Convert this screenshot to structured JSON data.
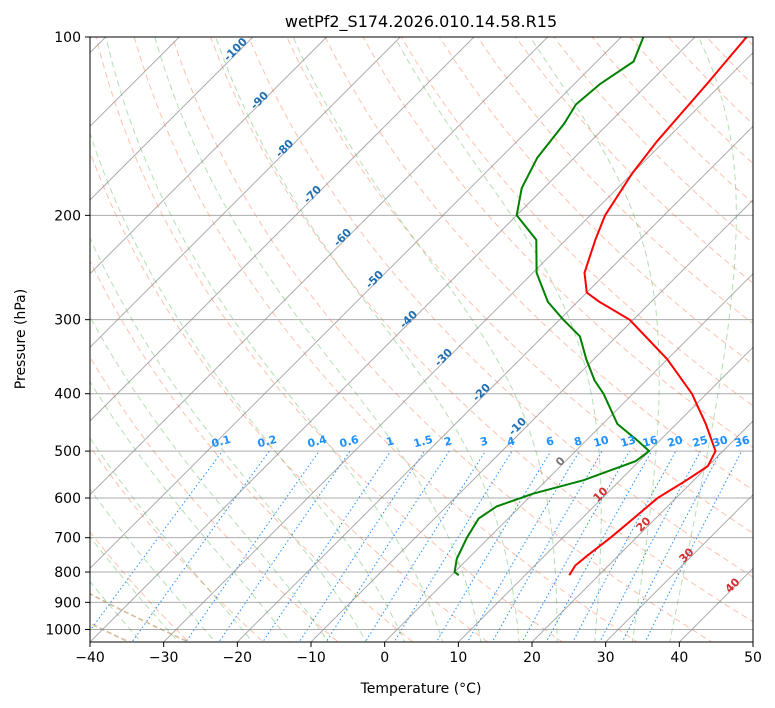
{
  "chart_data": {
    "type": "line",
    "title": "wetPf2_S174.2026.010.14.58.R15",
    "xlabel": "Temperature (°C)",
    "ylabel": "Pressure (hPa)",
    "xlim": [
      -40,
      50
    ],
    "ylim_hpa": [
      1050,
      100
    ],
    "x_ticks": [
      -40,
      -30,
      -20,
      -10,
      0,
      10,
      20,
      30,
      40,
      50
    ],
    "y_ticks": [
      100,
      200,
      300,
      400,
      500,
      600,
      700,
      800,
      900,
      1000
    ],
    "skew_deg": 45,
    "colors": {
      "temperature": "#ff0000",
      "dewpoint": "#008000",
      "dry_adiabat": "#ff8c69",
      "moist_adiabat": "#2ca02c",
      "mixing_ratio": "#1e90ff",
      "isotherm": "#888888",
      "lcl_curve": "#d2b48c"
    },
    "series": [
      {
        "name": "temperature",
        "points": [
          {
            "p": 810,
            "t": 16.0
          },
          {
            "p": 780,
            "t": 15.5
          },
          {
            "p": 750,
            "t": 15.8
          },
          {
            "p": 700,
            "t": 16.5
          },
          {
            "p": 650,
            "t": 17.0
          },
          {
            "p": 600,
            "t": 17.5
          },
          {
            "p": 560,
            "t": 19.0
          },
          {
            "p": 530,
            "t": 20.0
          },
          {
            "p": 500,
            "t": 19.0
          },
          {
            "p": 450,
            "t": 14.0
          },
          {
            "p": 400,
            "t": 8.0
          },
          {
            "p": 350,
            "t": 0.0
          },
          {
            "p": 300,
            "t": -10.5
          },
          {
            "p": 280,
            "t": -17.0
          },
          {
            "p": 270,
            "t": -20.0
          },
          {
            "p": 250,
            "t": -23.0
          },
          {
            "p": 220,
            "t": -26.0
          },
          {
            "p": 200,
            "t": -28.0
          },
          {
            "p": 170,
            "t": -30.0
          },
          {
            "p": 150,
            "t": -31.0
          },
          {
            "p": 120,
            "t": -32.0
          },
          {
            "p": 100,
            "t": -33.0
          }
        ]
      },
      {
        "name": "dewpoint",
        "points": [
          {
            "p": 810,
            "t": 1.0
          },
          {
            "p": 800,
            "t": 0.0
          },
          {
            "p": 760,
            "t": -1.5
          },
          {
            "p": 700,
            "t": -3.0
          },
          {
            "p": 650,
            "t": -4.0
          },
          {
            "p": 620,
            "t": -3.2
          },
          {
            "p": 590,
            "t": 0.0
          },
          {
            "p": 560,
            "t": 5.0
          },
          {
            "p": 520,
            "t": 9.5
          },
          {
            "p": 500,
            "t": 10.0
          },
          {
            "p": 480,
            "t": 7.0
          },
          {
            "p": 450,
            "t": 2.0
          },
          {
            "p": 400,
            "t": -4.0
          },
          {
            "p": 380,
            "t": -7.0
          },
          {
            "p": 350,
            "t": -11.0
          },
          {
            "p": 320,
            "t": -15.0
          },
          {
            "p": 300,
            "t": -19.5
          },
          {
            "p": 280,
            "t": -24.0
          },
          {
            "p": 250,
            "t": -29.5
          },
          {
            "p": 220,
            "t": -34.0
          },
          {
            "p": 200,
            "t": -40.0
          },
          {
            "p": 180,
            "t": -43.0
          },
          {
            "p": 160,
            "t": -45.0
          },
          {
            "p": 140,
            "t": -46.0
          },
          {
            "p": 130,
            "t": -47.0
          },
          {
            "p": 120,
            "t": -46.5
          },
          {
            "p": 110,
            "t": -45.0
          },
          {
            "p": 100,
            "t": -47.0
          }
        ]
      }
    ],
    "dry_adiabat_labels": [
      "-100",
      "-90",
      "-80",
      "-70",
      "-60",
      "-50",
      "-40",
      "-30",
      "-20",
      "-10"
    ],
    "moist_adiabat_labels": [
      "0",
      "10",
      "20",
      "30",
      "40"
    ],
    "mixing_ratio_labels": [
      "0.1",
      "0.2",
      "0.4",
      "0.6",
      "1",
      "1.5",
      "2",
      "3",
      "4",
      "6",
      "8",
      "10",
      "13",
      "16",
      "20",
      "25",
      "30",
      "36"
    ]
  }
}
